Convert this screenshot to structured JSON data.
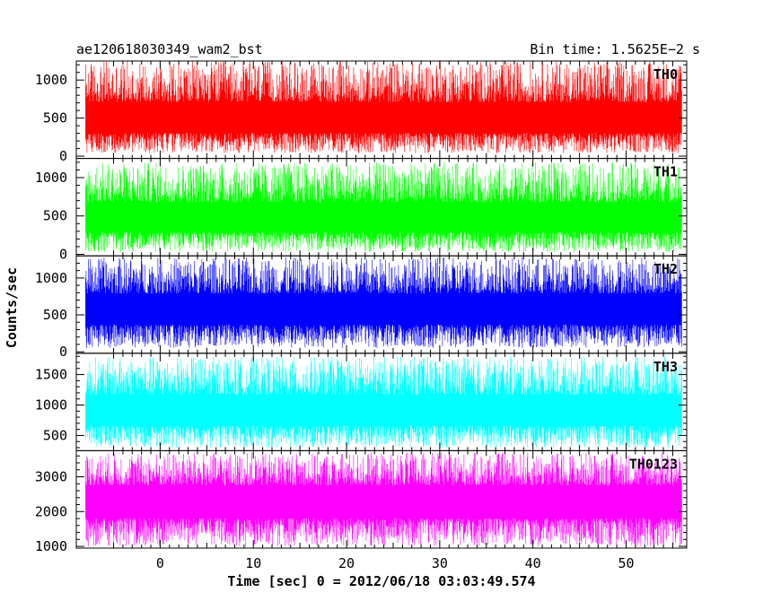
{
  "header": {
    "title": "ae120618030349_wam2_bst",
    "bin_time": "Bin time: 1.5625E−2 s"
  },
  "axes": {
    "ylabel": "Counts/sec",
    "xlabel": "Time [sec] 0 = 2012/06/18 03:03:49.574"
  },
  "chart_data": {
    "type": "line",
    "title": "ae120618030349_wam2_bst",
    "subtitle": "Bin time: 1.5625E−2 s",
    "xlabel": "Time [sec] 0 = 2012/06/18 03:03:49.574",
    "ylabel": "Counts/sec",
    "xlim": [
      -9,
      56.5
    ],
    "x_range": [
      -8,
      56
    ],
    "bin_time": 0.015625,
    "x_ticks": [
      0,
      10,
      20,
      30,
      40,
      50
    ],
    "grid": false,
    "panels": [
      {
        "name": "TH0",
        "color": "#ff0000",
        "ylim": [
          -30,
          1250
        ],
        "y_ticks": [
          0,
          500,
          1000
        ],
        "base_level": 480,
        "min": 40,
        "max": 1250
      },
      {
        "name": "TH1",
        "color": "#00ff00",
        "ylim": [
          -20,
          1250
        ],
        "y_ticks": [
          0,
          500,
          1000
        ],
        "base_level": 460,
        "min": 30,
        "max": 1200
      },
      {
        "name": "TH2",
        "color": "#0000ff",
        "ylim": [
          -20,
          1300
        ],
        "y_ticks": [
          0,
          500,
          1000
        ],
        "base_level": 580,
        "min": 50,
        "max": 1280
      },
      {
        "name": "TH3",
        "color": "#00ffff",
        "ylim": [
          250,
          1850
        ],
        "y_ticks": [
          500,
          1000,
          1500
        ],
        "base_level": 900,
        "min": 300,
        "max": 1800
      },
      {
        "name": "TH0123",
        "color": "#ff00ff",
        "ylim": [
          950,
          3750
        ],
        "y_ticks": [
          1000,
          2000,
          3000
        ],
        "base_level": 2350,
        "min": 1000,
        "max": 3700
      }
    ]
  }
}
